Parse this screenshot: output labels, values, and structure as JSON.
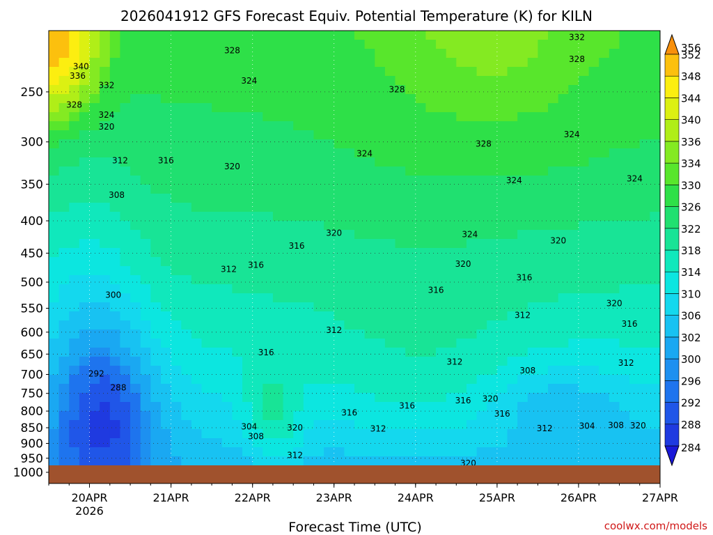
{
  "chart_data": {
    "type": "heatmap",
    "title": "2026041912 GFS Forecast Equiv. Potential Temperature (K) for KILN",
    "xlabel": "Forecast Time (UTC)",
    "ylabel": "",
    "credit": "coolwx.com/models",
    "x_ticks": [
      {
        "label": "20APR",
        "sub": "2026",
        "hours": 12
      },
      {
        "label": "21APR",
        "sub": "",
        "hours": 36
      },
      {
        "label": "22APR",
        "sub": "",
        "hours": 60
      },
      {
        "label": "23APR",
        "sub": "",
        "hours": 84
      },
      {
        "label": "24APR",
        "sub": "",
        "hours": 108
      },
      {
        "label": "25APR",
        "sub": "",
        "hours": 132
      },
      {
        "label": "26APR",
        "sub": "",
        "hours": 156
      },
      {
        "label": "27APR",
        "sub": "",
        "hours": 180
      }
    ],
    "xlim_hours": [
      0,
      180
    ],
    "y_ticks": [
      "250",
      "300",
      "350",
      "400",
      "450",
      "500",
      "550",
      "600",
      "650",
      "700",
      "750",
      "800",
      "850",
      "900",
      "950",
      "1000"
    ],
    "y_pressure": [
      250,
      300,
      350,
      400,
      450,
      500,
      550,
      600,
      650,
      700,
      750,
      800,
      850,
      900,
      950,
      1000
    ],
    "ylim_hPa": [
      200,
      1000
    ],
    "colorbar": {
      "levels": [
        "284",
        "288",
        "292",
        "296",
        "300",
        "302",
        "306",
        "310",
        "314",
        "318",
        "322",
        "326",
        "330",
        "334",
        "336",
        "340",
        "344",
        "348",
        "352",
        "356"
      ],
      "colors": [
        "#1a18d8",
        "#1f3ae0",
        "#2056e8",
        "#1e74ee",
        "#1d90f0",
        "#1aa8f2",
        "#18c2f2",
        "#14d8ee",
        "#0ce6e0",
        "#10e8bc",
        "#18e496",
        "#20e070",
        "#2ee048",
        "#58e62c",
        "#84ea22",
        "#b0ee18",
        "#dcf012",
        "#fcee10",
        "#fcc00e",
        "#f8900c"
      ]
    },
    "contour_interval_K": 4,
    "contour_labels": [
      {
        "text": "340",
        "t": 9.5,
        "p": 228
      },
      {
        "text": "336",
        "t": 8.5,
        "p": 236
      },
      {
        "text": "332",
        "t": 17.0,
        "p": 244
      },
      {
        "text": "328",
        "t": 7.5,
        "p": 262
      },
      {
        "text": "324",
        "t": 17.0,
        "p": 272
      },
      {
        "text": "320",
        "t": 17.0,
        "p": 284
      },
      {
        "text": "328",
        "t": 54.0,
        "p": 215
      },
      {
        "text": "332",
        "t": 155.5,
        "p": 205
      },
      {
        "text": "328",
        "t": 155.5,
        "p": 222
      },
      {
        "text": "324",
        "t": 59.0,
        "p": 240
      },
      {
        "text": "328",
        "t": 102.5,
        "p": 248
      },
      {
        "text": "324",
        "t": 154.0,
        "p": 292
      },
      {
        "text": "328",
        "t": 128.0,
        "p": 302
      },
      {
        "text": "324",
        "t": 93.0,
        "p": 313
      },
      {
        "text": "312",
        "t": 21.0,
        "p": 321
      },
      {
        "text": "316",
        "t": 34.5,
        "p": 321
      },
      {
        "text": "320",
        "t": 54.0,
        "p": 328
      },
      {
        "text": "308",
        "t": 20.0,
        "p": 364
      },
      {
        "text": "324",
        "t": 137.0,
        "p": 345
      },
      {
        "text": "324",
        "t": 172.5,
        "p": 343
      },
      {
        "text": "320",
        "t": 84.0,
        "p": 418
      },
      {
        "text": "324",
        "t": 124.0,
        "p": 420
      },
      {
        "text": "320",
        "t": 150.0,
        "p": 430
      },
      {
        "text": "316",
        "t": 73.0,
        "p": 438
      },
      {
        "text": "316",
        "t": 61.0,
        "p": 470
      },
      {
        "text": "312",
        "t": 53.0,
        "p": 477
      },
      {
        "text": "320",
        "t": 122.0,
        "p": 468
      },
      {
        "text": "316",
        "t": 140.0,
        "p": 492
      },
      {
        "text": "300",
        "t": 19.0,
        "p": 524
      },
      {
        "text": "316",
        "t": 114.0,
        "p": 515
      },
      {
        "text": "320",
        "t": 166.5,
        "p": 540
      },
      {
        "text": "312",
        "t": 139.5,
        "p": 564
      },
      {
        "text": "316",
        "t": 171.0,
        "p": 582
      },
      {
        "text": "312",
        "t": 84.0,
        "p": 596
      },
      {
        "text": "316",
        "t": 64.0,
        "p": 646
      },
      {
        "text": "312",
        "t": 119.5,
        "p": 669
      },
      {
        "text": "312",
        "t": 170.0,
        "p": 671
      },
      {
        "text": "308",
        "t": 141.0,
        "p": 690
      },
      {
        "text": "292",
        "t": 14.0,
        "p": 698
      },
      {
        "text": "288",
        "t": 20.5,
        "p": 735
      },
      {
        "text": "316",
        "t": 122.0,
        "p": 770
      },
      {
        "text": "320",
        "t": 130.0,
        "p": 765
      },
      {
        "text": "316",
        "t": 88.5,
        "p": 805
      },
      {
        "text": "316",
        "t": 105.5,
        "p": 785
      },
      {
        "text": "316",
        "t": 133.5,
        "p": 808
      },
      {
        "text": "304",
        "t": 59.0,
        "p": 847
      },
      {
        "text": "308",
        "t": 61.0,
        "p": 878
      },
      {
        "text": "320",
        "t": 72.5,
        "p": 850
      },
      {
        "text": "312",
        "t": 97.0,
        "p": 853
      },
      {
        "text": "312",
        "t": 146.0,
        "p": 852
      },
      {
        "text": "304",
        "t": 158.5,
        "p": 845
      },
      {
        "text": "308",
        "t": 167.0,
        "p": 842
      },
      {
        "text": "320",
        "t": 173.5,
        "p": 844
      },
      {
        "text": "312",
        "t": 72.5,
        "p": 940
      },
      {
        "text": "320",
        "t": 123.5,
        "p": 967
      }
    ]
  }
}
